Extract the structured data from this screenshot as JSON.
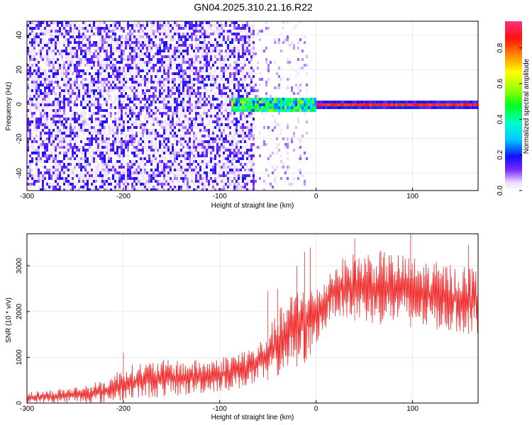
{
  "title": "GN04.2025.310.21.16.R22",
  "colors": {
    "snr_line": "#f03030",
    "background": "#ffffff",
    "axis": "#000000",
    "grid": "#dddddd"
  },
  "colorbar": {
    "label": "Normalized spectral amplitude",
    "ticks": [
      "0.0",
      "0.2",
      "0.4",
      "0.6",
      "0.8"
    ],
    "tick_values": [
      0.0,
      0.2,
      0.4,
      0.6,
      0.8
    ],
    "range": [
      0,
      0.95
    ]
  },
  "chart_data": [
    {
      "type": "heatmap",
      "xlabel": "Height of straight line (km)",
      "ylabel": "Frequency (Hz)",
      "xlim": [
        -300,
        168
      ],
      "ylim": [
        -50,
        48
      ],
      "xticks": [
        -300,
        -200,
        -100,
        0,
        100
      ],
      "xtick_labels": [
        "-300",
        "-200",
        "-100",
        "0",
        "100"
      ],
      "yticks": [
        -40,
        -20,
        0,
        20,
        40
      ],
      "ytick_labels": [
        "-40",
        "-20",
        "0",
        "20",
        "40"
      ],
      "grid": true,
      "features": [
        {
          "region": "noise",
          "x_range": [
            -300,
            -65
          ],
          "freq_range": [
            -50,
            48
          ],
          "amplitude": [
            0.05,
            0.2
          ]
        },
        {
          "region": "sparse noise",
          "x_range": [
            -65,
            -10
          ],
          "freq_range": [
            -50,
            48
          ],
          "amplitude": [
            0.0,
            0.1
          ]
        },
        {
          "region": "signal onset",
          "x_range": [
            -90,
            0
          ],
          "freq_center": 0,
          "freq_halfwidth": 4,
          "amplitude": [
            0.2,
            0.6
          ]
        },
        {
          "region": "carrier",
          "x_range": [
            0,
            168
          ],
          "freq_center": 0,
          "freq_halfwidth": 1,
          "amplitude": [
            0.8,
            0.95
          ]
        }
      ]
    },
    {
      "type": "line",
      "xlabel": "Height of straight line (km)",
      "ylabel": "SNR (10 * v/v)",
      "xlim": [
        -300,
        168
      ],
      "ylim": [
        0,
        3700
      ],
      "xticks": [
        -300,
        -200,
        -100,
        0,
        100
      ],
      "xtick_labels": [
        "-300",
        "-200",
        "-100",
        "0",
        "100"
      ],
      "yticks": [
        0,
        1000,
        2000,
        3000
      ],
      "ytick_labels": [
        "0",
        "1000",
        "2000",
        "3000"
      ],
      "grid": true,
      "series": [
        {
          "x": [
            -300,
            -280,
            -260,
            -240,
            -220,
            -200,
            -180,
            -160,
            -140,
            -120,
            -100,
            -80,
            -60,
            -50,
            -40,
            -30,
            -20,
            -10,
            0,
            10,
            20,
            40,
            60,
            80,
            100,
            120,
            140,
            168
          ],
          "lower": [
            0,
            0,
            0,
            0,
            0,
            50,
            100,
            120,
            150,
            200,
            250,
            300,
            400,
            500,
            600,
            700,
            800,
            900,
            1300,
            1600,
            1900,
            1800,
            1700,
            1700,
            1650,
            1600,
            1550,
            1500
          ],
          "upper": [
            250,
            280,
            330,
            400,
            500,
            800,
            900,
            950,
            950,
            950,
            1000,
            1150,
            1300,
            1600,
            2000,
            2300,
            2500,
            2700,
            2500,
            2800,
            3100,
            3300,
            3350,
            3300,
            3200,
            3100,
            3050,
            3000
          ],
          "spikes": [
            [
              -200,
              1100
            ],
            [
              -50,
              2450
            ],
            [
              -40,
              2500
            ],
            [
              -20,
              3000
            ],
            [
              -12,
              3300
            ],
            [
              -6,
              3400
            ],
            [
              40,
              3600
            ],
            [
              98,
              3700
            ],
            [
              158,
              3450
            ]
          ]
        }
      ]
    }
  ]
}
